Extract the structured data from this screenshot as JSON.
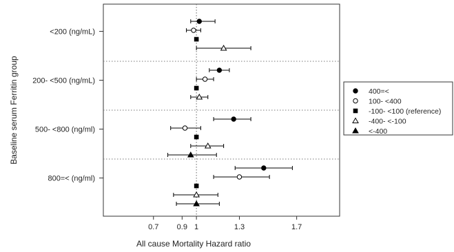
{
  "chart_data": {
    "type": "scatter",
    "subtype": "forest-plot",
    "title": "",
    "xlabel": "All cause Mortality Hazard ratio",
    "ylabel": "Baseline serum Ferritin group",
    "xlim": [
      0.35,
      2.0
    ],
    "xticks": [
      0.7,
      0.9,
      1,
      1.3,
      1.7
    ],
    "xtick_labels": [
      "0.7",
      "0.9",
      "1",
      "1.3",
      "1.7"
    ],
    "reference_line_x": 1,
    "grid": false,
    "legend_position": "right",
    "groups": [
      {
        "label": "<200 (ng/mL)",
        "rows": [
          {
            "series": "400=<",
            "hr": 1.02,
            "lower": 0.96,
            "upper": 1.13
          },
          {
            "series": "100- <400",
            "hr": 0.98,
            "lower": 0.93,
            "upper": 1.03
          },
          {
            "series": "-100- <100 (reference)",
            "hr": 1.0,
            "lower": null,
            "upper": null
          },
          {
            "series": "-400- <-100",
            "hr": 1.19,
            "lower": 1.0,
            "upper": 1.38
          }
        ]
      },
      {
        "label": "200- <500 (ng/mL)",
        "rows": [
          {
            "series": "400=<",
            "hr": 1.16,
            "lower": 1.09,
            "upper": 1.23
          },
          {
            "series": "100- <400",
            "hr": 1.06,
            "lower": 1.0,
            "upper": 1.12
          },
          {
            "series": "-100- <100 (reference)",
            "hr": 1.0,
            "lower": null,
            "upper": null
          },
          {
            "series": "-400- <-100",
            "hr": 1.02,
            "lower": 0.96,
            "upper": 1.08
          }
        ]
      },
      {
        "label": "500- <800 (ng/ml)",
        "rows": [
          {
            "series": "400=<",
            "hr": 1.26,
            "lower": 1.12,
            "upper": 1.38
          },
          {
            "series": "100- <400",
            "hr": 0.92,
            "lower": 0.82,
            "upper": 1.03
          },
          {
            "series": "-100- <100 (reference)",
            "hr": 1.0,
            "lower": null,
            "upper": null
          },
          {
            "series": "-400- <-100",
            "hr": 1.08,
            "lower": 0.96,
            "upper": 1.19
          },
          {
            "series": "<-400",
            "hr": 0.96,
            "lower": 0.8,
            "upper": 1.14
          }
        ]
      },
      {
        "label": "800=< (ng/ml)",
        "rows": [
          {
            "series": "400=<",
            "hr": 1.47,
            "lower": 1.27,
            "upper": 1.67
          },
          {
            "series": "100- <400",
            "hr": 1.3,
            "lower": 1.12,
            "upper": 1.51
          },
          {
            "series": "-100- <100 (reference)",
            "hr": 1.0,
            "lower": null,
            "upper": null
          },
          {
            "series": "-400- <-100",
            "hr": 1.0,
            "lower": 0.84,
            "upper": 1.15
          },
          {
            "series": "<-400",
            "hr": 1.0,
            "lower": 0.86,
            "upper": 1.16
          }
        ]
      }
    ],
    "series": [
      {
        "name": "400=<",
        "marker": "filled-circle"
      },
      {
        "name": "100- <400",
        "marker": "open-circle"
      },
      {
        "name": "-100- <100 (reference)",
        "marker": "filled-square"
      },
      {
        "name": "-400- <-100",
        "marker": "open-triangle"
      },
      {
        "name": "<-400",
        "marker": "filled-triangle"
      }
    ]
  }
}
